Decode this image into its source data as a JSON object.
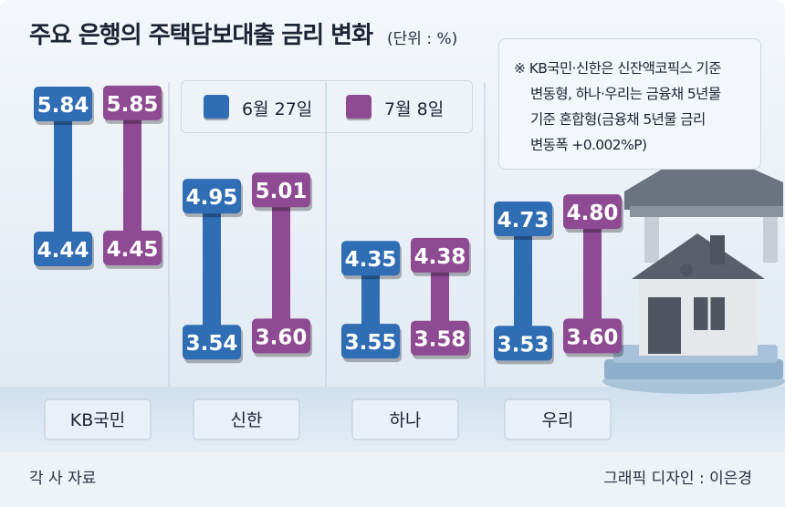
{
  "header": {
    "title": "주요 은행의 주택담보대출 금리 변화",
    "unit": "(단위 : %)"
  },
  "note": {
    "lines": [
      "※ KB국민·신한은 신잔액코픽스 기준",
      "변동형, 하나·우리는 금융채 5년물",
      "기준 혼합형(금융채 5년물 금리",
      "변동폭 +0.002%P)"
    ]
  },
  "footer": {
    "source": "각 사 자료",
    "credit": "그래픽 디자인 : 이은경"
  },
  "colors": {
    "series1": "#2f6db5",
    "series2": "#8e4a93",
    "background": "#e6eef6"
  },
  "chart_data": {
    "type": "bar",
    "categories": [
      "KB국민",
      "신한",
      "하나",
      "우리"
    ],
    "series": [
      {
        "name": "6월 27일",
        "low": [
          4.44,
          3.54,
          3.55,
          3.53
        ],
        "high": [
          5.84,
          4.95,
          4.35,
          4.73
        ],
        "labels": {
          "low": [
            "4.44",
            "3.54",
            "3.55",
            "3.53"
          ],
          "high": [
            "5.84",
            "4.95",
            "4.35",
            "4.73"
          ]
        }
      },
      {
        "name": "7월 8일",
        "low": [
          4.45,
          3.6,
          3.58,
          3.6
        ],
        "high": [
          5.85,
          5.01,
          4.38,
          4.8
        ],
        "labels": {
          "low": [
            "4.45",
            "3.60",
            "3.58",
            "3.60"
          ],
          "high": [
            "5.85",
            "5.01",
            "4.38",
            "4.80"
          ]
        }
      }
    ],
    "legend": "top"
  }
}
